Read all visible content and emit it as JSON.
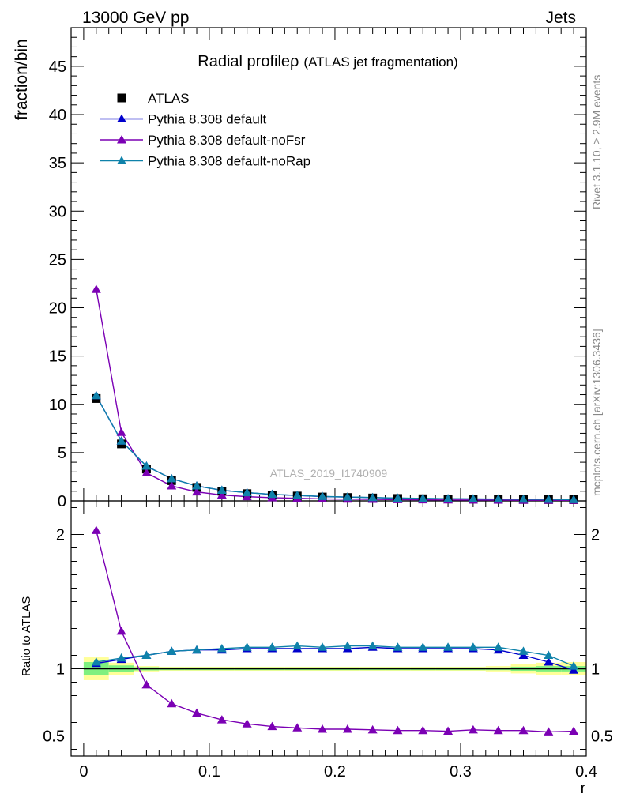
{
  "header": {
    "left": "13000 GeV pp",
    "right": "Jets"
  },
  "title": {
    "main": "Radial profile",
    "symbol": "ρ",
    "sub": "(ATLAS jet fragmentation)"
  },
  "analysis_id": "ATLAS_2019_I1740909",
  "side_text": {
    "rivet": "Rivet 3.1.10, ≥ 2.9M events",
    "mcplots": "mcplots.cern.ch [arXiv:1306.3436]"
  },
  "colors": {
    "data": "#000000",
    "default": "#0000cc",
    "noFsr": "#7b00b4",
    "noRap": "#0f82aa",
    "band_inner": "#7ff07f",
    "band_outer": "#ffff99"
  },
  "chart_data": [
    {
      "type": "scatter",
      "panel": "main",
      "ylabel": "fraction/bin",
      "xlim": [
        -0.01,
        0.4
      ],
      "ylim": [
        0,
        49
      ],
      "yticks": [
        0,
        5,
        10,
        15,
        20,
        25,
        30,
        35,
        40,
        45
      ],
      "legend_position": "top-left",
      "x": [
        0.01,
        0.03,
        0.05,
        0.07,
        0.09,
        0.11,
        0.13,
        0.15,
        0.17,
        0.19,
        0.21,
        0.23,
        0.25,
        0.27,
        0.29,
        0.31,
        0.33,
        0.35,
        0.37,
        0.39
      ],
      "series": [
        {
          "name": "ATLAS",
          "marker": "square",
          "values": [
            10.6,
            5.9,
            3.3,
            2.1,
            1.4,
            1.0,
            0.75,
            0.6,
            0.5,
            0.4,
            0.35,
            0.3,
            0.25,
            0.22,
            0.2,
            0.18,
            0.16,
            0.15,
            0.14,
            0.13
          ]
        },
        {
          "name": "Pythia 8.308 default",
          "marker": "triangle",
          "values": [
            10.9,
            6.2,
            3.6,
            2.3,
            1.55,
            1.1,
            0.85,
            0.67,
            0.56,
            0.45,
            0.39,
            0.34,
            0.28,
            0.25,
            0.22,
            0.2,
            0.18,
            0.16,
            0.15,
            0.13
          ]
        },
        {
          "name": "Pythia 8.308 default-noFsr",
          "marker": "triangle",
          "values": [
            21.9,
            7.1,
            2.9,
            1.55,
            0.93,
            0.61,
            0.44,
            0.33,
            0.27,
            0.21,
            0.18,
            0.16,
            0.13,
            0.11,
            0.1,
            0.09,
            0.08,
            0.07,
            0.07,
            0.06
          ]
        },
        {
          "name": "Pythia 8.308 default-noRap",
          "marker": "triangle",
          "values": [
            10.9,
            6.2,
            3.6,
            2.3,
            1.55,
            1.1,
            0.85,
            0.68,
            0.57,
            0.46,
            0.4,
            0.35,
            0.29,
            0.26,
            0.23,
            0.21,
            0.19,
            0.17,
            0.16,
            0.13
          ]
        }
      ]
    },
    {
      "type": "line",
      "panel": "ratio",
      "ylabel": "Ratio to ATLAS",
      "xlabel": "r",
      "xlim": [
        -0.01,
        0.4
      ],
      "ylim": [
        0.35,
        2.25
      ],
      "yticks": [
        0.5,
        1,
        2
      ],
      "xticks": [
        0,
        0.1,
        0.2,
        0.3,
        0.4
      ],
      "x": [
        0.01,
        0.03,
        0.05,
        0.07,
        0.09,
        0.11,
        0.13,
        0.15,
        0.17,
        0.19,
        0.21,
        0.23,
        0.25,
        0.27,
        0.29,
        0.31,
        0.33,
        0.35,
        0.37,
        0.39
      ],
      "bins": [
        0.0,
        0.02,
        0.04,
        0.06,
        0.08,
        0.1,
        0.12,
        0.14,
        0.16,
        0.18,
        0.2,
        0.22,
        0.24,
        0.26,
        0.28,
        0.3,
        0.32,
        0.34,
        0.36,
        0.38,
        0.4
      ],
      "band_outer": [
        0.085,
        0.045,
        0.02,
        0.015,
        0.015,
        0.015,
        0.015,
        0.015,
        0.015,
        0.015,
        0.015,
        0.015,
        0.015,
        0.015,
        0.015,
        0.015,
        0.02,
        0.035,
        0.045,
        0.05
      ],
      "band_inner": [
        0.05,
        0.025,
        0.012,
        0.01,
        0.01,
        0.01,
        0.01,
        0.01,
        0.01,
        0.01,
        0.01,
        0.01,
        0.01,
        0.01,
        0.01,
        0.01,
        0.01,
        0.015,
        0.02,
        0.02
      ],
      "series": [
        {
          "name": "Pythia 8.308 default",
          "values": [
            1.04,
            1.07,
            1.1,
            1.13,
            1.14,
            1.14,
            1.15,
            1.15,
            1.15,
            1.15,
            1.15,
            1.16,
            1.15,
            1.15,
            1.15,
            1.15,
            1.14,
            1.1,
            1.05,
            0.99
          ]
        },
        {
          "name": "Pythia 8.308 default-noFsr",
          "values": [
            2.03,
            1.28,
            0.88,
            0.74,
            0.67,
            0.62,
            0.59,
            0.57,
            0.56,
            0.55,
            0.55,
            0.545,
            0.54,
            0.54,
            0.535,
            0.545,
            0.54,
            0.54,
            0.53,
            0.535
          ]
        },
        {
          "name": "Pythia 8.308 default-noRap",
          "values": [
            1.05,
            1.08,
            1.1,
            1.13,
            1.14,
            1.15,
            1.16,
            1.16,
            1.17,
            1.16,
            1.17,
            1.17,
            1.16,
            1.16,
            1.16,
            1.16,
            1.16,
            1.13,
            1.1,
            1.02
          ]
        }
      ]
    }
  ]
}
